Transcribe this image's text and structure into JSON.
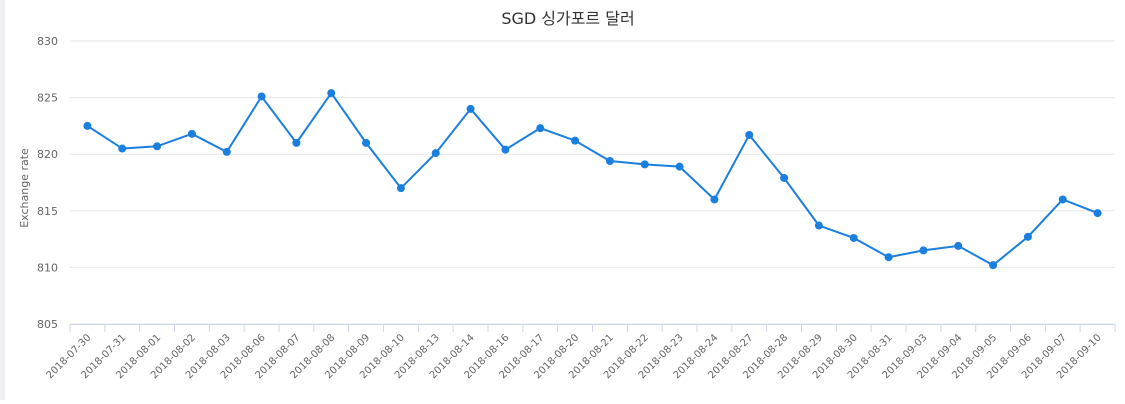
{
  "chart_data": {
    "type": "line",
    "title": "SGD 싱가포르 달러",
    "xlabel": "",
    "ylabel": "Exchange rate",
    "ylim": [
      805,
      830
    ],
    "yticks": [
      805,
      810,
      815,
      820,
      825,
      830
    ],
    "grid": true,
    "legend": "none",
    "color": "#1a7fdf",
    "categories": [
      "2018-07-30",
      "2018-07-31",
      "2018-08-01",
      "2018-08-02",
      "2018-08-03",
      "2018-08-06",
      "2018-08-07",
      "2018-08-08",
      "2018-08-09",
      "2018-08-10",
      "2018-08-13",
      "2018-08-14",
      "2018-08-16",
      "2018-08-17",
      "2018-08-20",
      "2018-08-21",
      "2018-08-22",
      "2018-08-23",
      "2018-08-24",
      "2018-08-27",
      "2018-08-28",
      "2018-08-29",
      "2018-08-30",
      "2018-08-31",
      "2018-09-03",
      "2018-09-04",
      "2018-09-05",
      "2018-09-06",
      "2018-09-07",
      "2018-09-10"
    ],
    "values": [
      822.5,
      820.5,
      820.7,
      821.8,
      820.2,
      825.1,
      821.0,
      825.4,
      821.0,
      817.0,
      820.1,
      824.0,
      820.4,
      822.3,
      821.2,
      819.4,
      819.1,
      818.9,
      816.0,
      821.7,
      817.9,
      813.7,
      812.6,
      810.9,
      811.5,
      811.9,
      810.2,
      812.7,
      816.0,
      814.8
    ]
  }
}
